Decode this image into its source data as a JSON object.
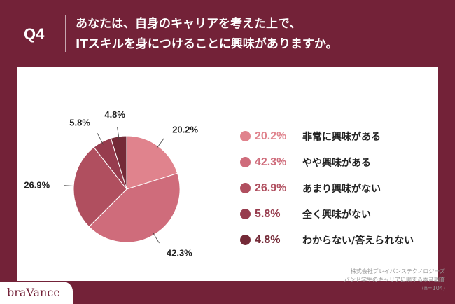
{
  "header": {
    "q_label": "Q4",
    "question_line1": "あなたは、自身のキャリアを考えた上で、",
    "question_line2": "ITスキルを身につけることに興味がありますか。"
  },
  "chart_data": {
    "type": "pie",
    "slices": [
      {
        "label": "非常に興味がある",
        "value": 20.2,
        "display": "20.2%",
        "color": "#e0838d"
      },
      {
        "label": "やや興味がある",
        "value": 42.3,
        "display": "42.3%",
        "color": "#cf6c7b"
      },
      {
        "label": "あまり興味がない",
        "value": 26.9,
        "display": "26.9%",
        "color": "#b04f5f"
      },
      {
        "label": "全く興味がない",
        "value": 5.8,
        "display": "5.8%",
        "color": "#973c4e"
      },
      {
        "label": "わからない/答えられない",
        "value": 4.8,
        "display": "4.8%",
        "color": "#742a37"
      }
    ],
    "legend_position": "right"
  },
  "source": {
    "line1": "株式会社ブレイバンステクノロジーズ",
    "line2": "バンド学生のキャリアに関する本音調査",
    "line3": "(n=104)"
  },
  "logo": {
    "text": "braVance"
  }
}
